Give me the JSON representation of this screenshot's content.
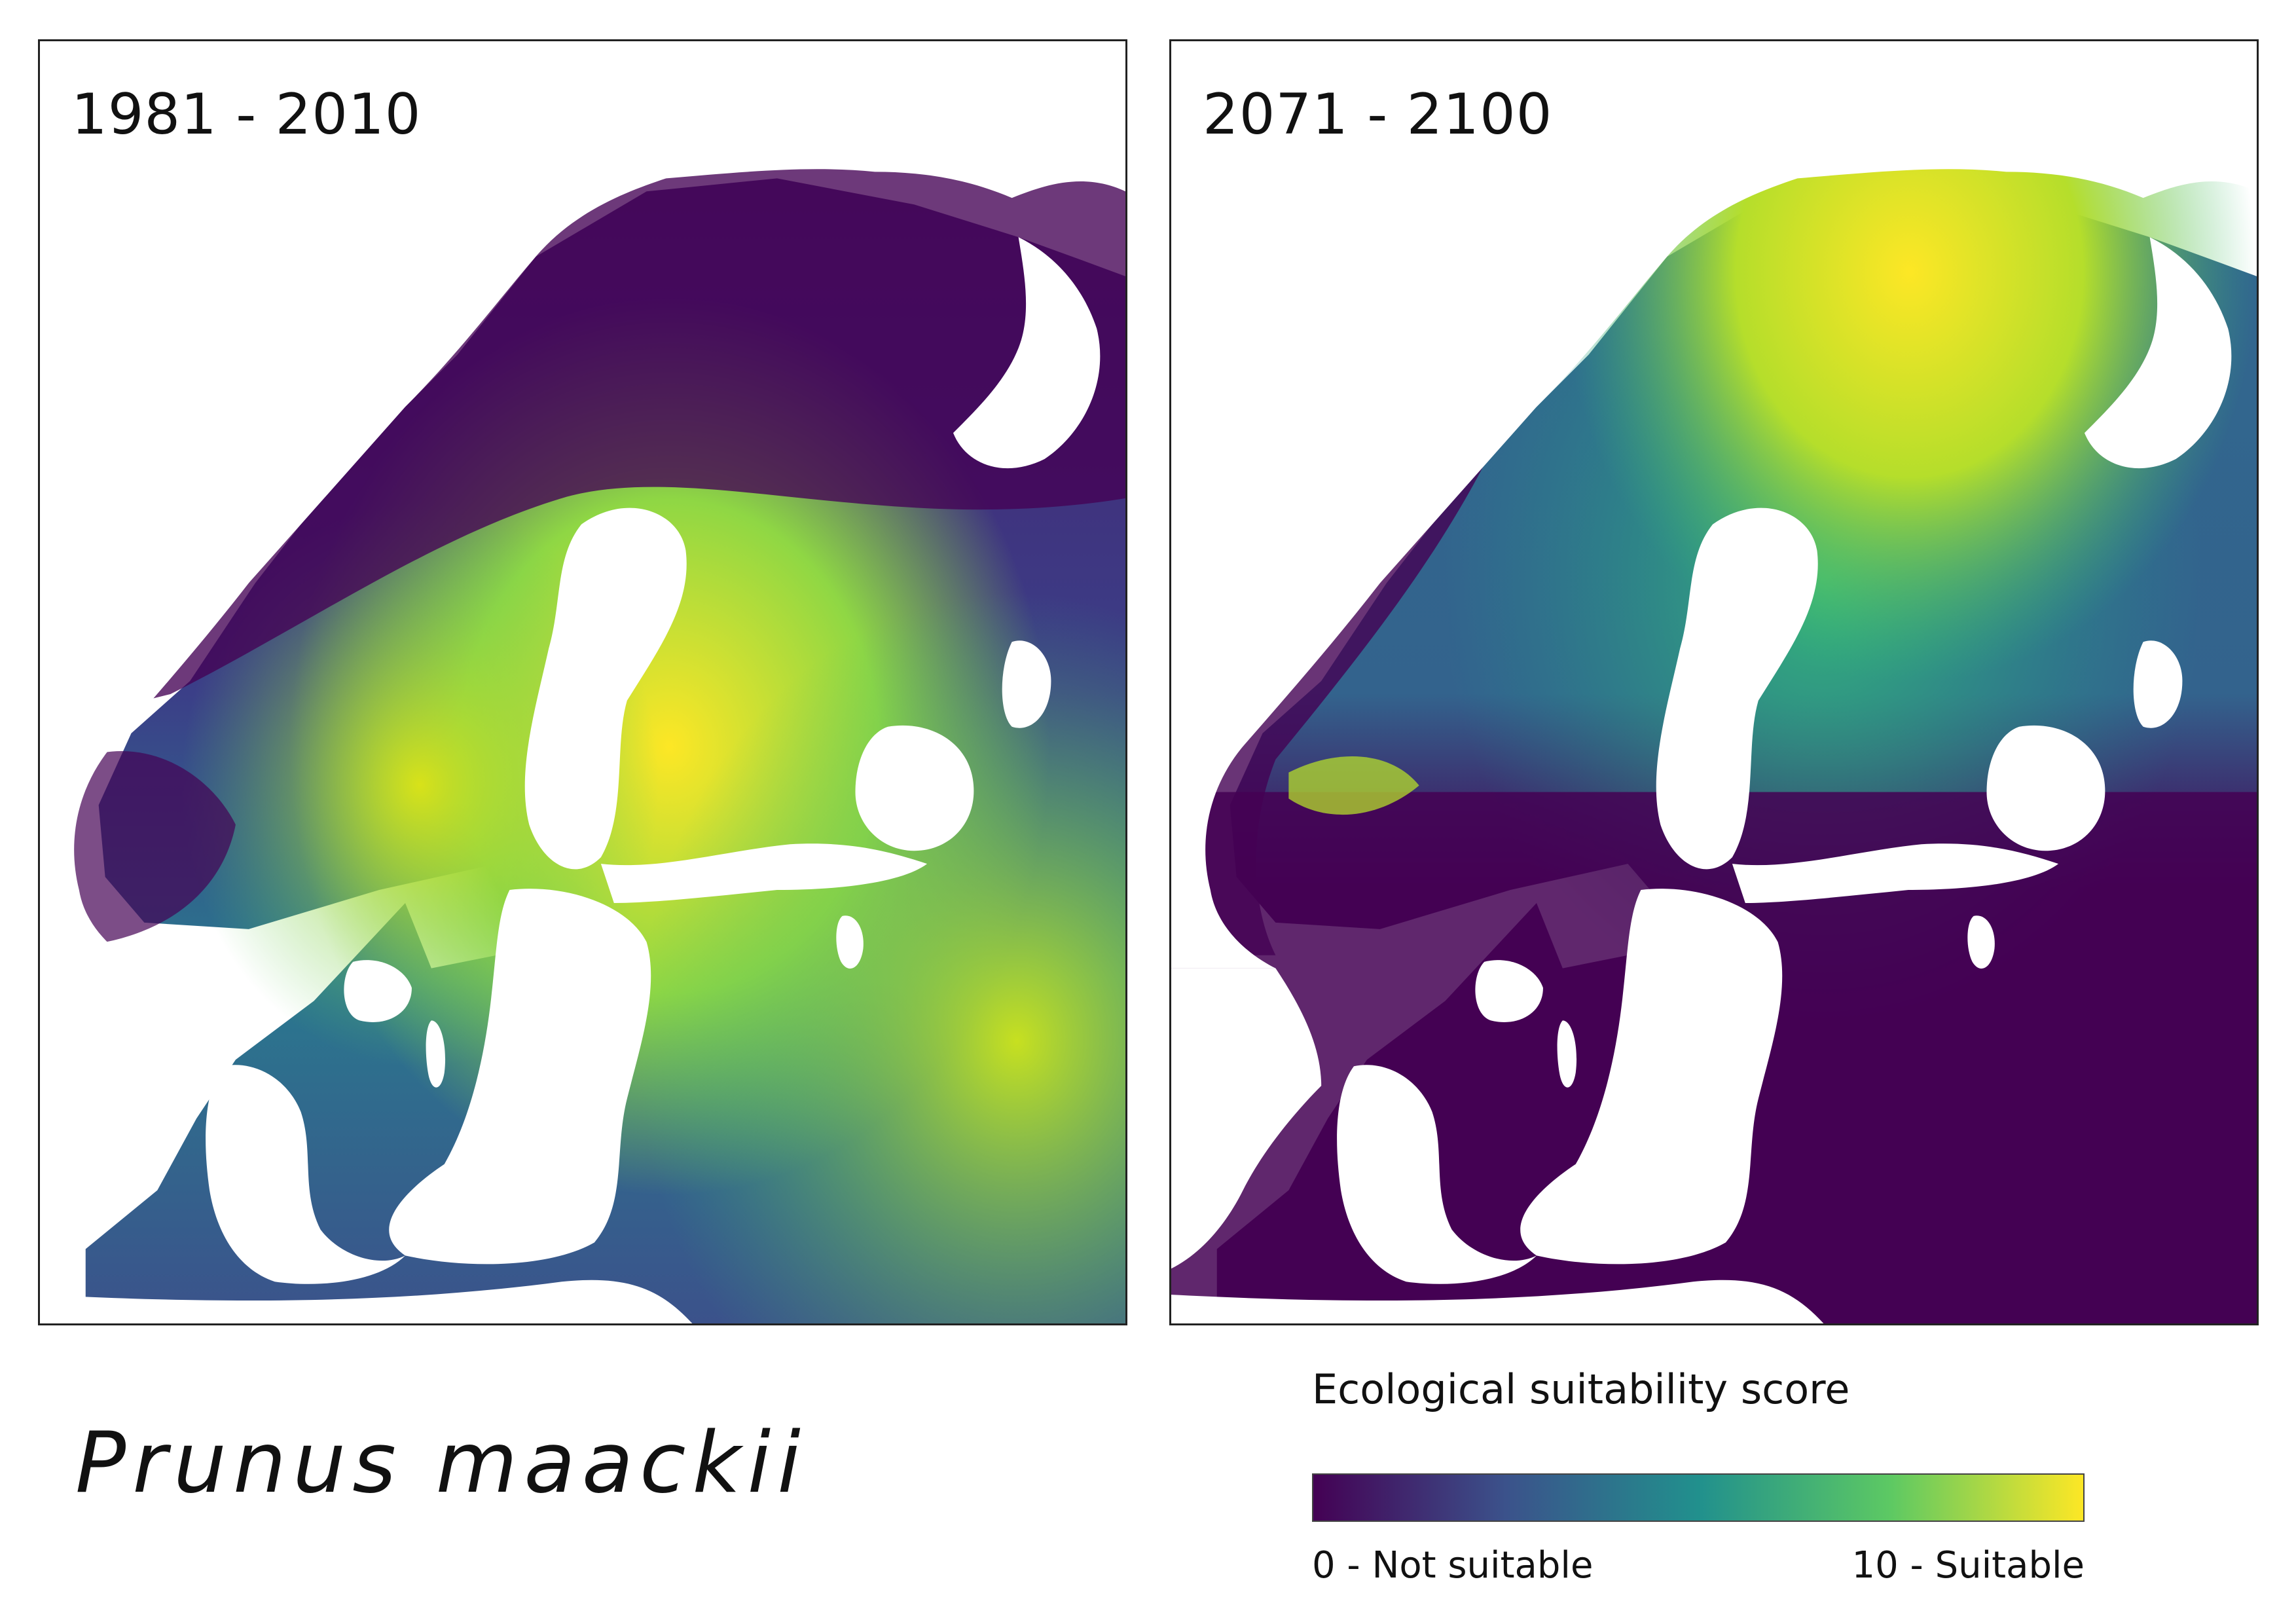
{
  "panels": [
    {
      "period": "1981 - 2010"
    },
    {
      "period": "2071 - 2100"
    }
  ],
  "species": "Prunus maackii",
  "legend": {
    "title": "Ecological suitability score",
    "min_label": "0 - Not suitable",
    "max_label": "10 - Suitable",
    "colormap": [
      "#440154",
      "#3b528b",
      "#21908d",
      "#5dc963",
      "#fde725"
    ]
  }
}
